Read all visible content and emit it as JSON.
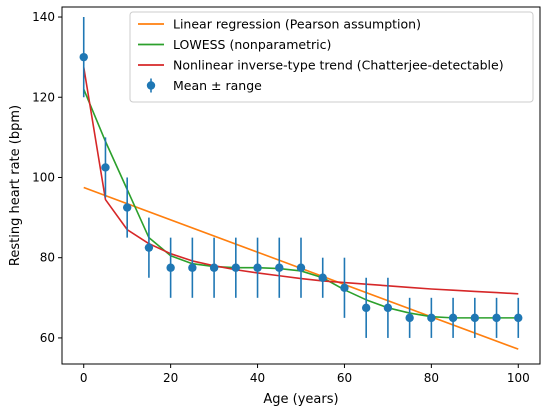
{
  "chart_data": {
    "type": "line",
    "title": "",
    "xlabel": "Age (years)",
    "ylabel": "Resting heart rate (bpm)",
    "xlim": [
      -5,
      105
    ],
    "ylim": [
      53.5,
      142.5
    ],
    "xticks": [
      0,
      20,
      40,
      60,
      80,
      100
    ],
    "yticks": [
      60,
      80,
      100,
      120,
      140
    ],
    "grid": false,
    "legend_position": "top-right",
    "points": {
      "name": "Mean ± range",
      "color": "#1f77b4",
      "x": [
        0,
        5,
        10,
        15,
        20,
        25,
        30,
        35,
        40,
        45,
        50,
        55,
        60,
        65,
        70,
        75,
        80,
        85,
        90,
        95,
        100
      ],
      "y": [
        130,
        102.5,
        92.5,
        82.5,
        77.5,
        77.5,
        77.5,
        77.5,
        77.5,
        77.5,
        77.5,
        75,
        72.5,
        67.5,
        67.5,
        65,
        65,
        65,
        65,
        65,
        65
      ],
      "err": [
        10,
        7.5,
        7.5,
        7.5,
        7.5,
        7.5,
        7.5,
        7.5,
        7.5,
        7.5,
        7.5,
        5,
        7.5,
        7.5,
        7.5,
        5,
        5,
        5,
        5,
        5,
        5
      ]
    },
    "series": [
      {
        "name": "Linear regression (Pearson assumption)",
        "color": "#ff7f0e",
        "x": [
          0,
          100
        ],
        "y": [
          97.5,
          57.2
        ]
      },
      {
        "name": "LOWESS (nonparametric)",
        "color": "#2ca02c",
        "x": [
          0,
          5,
          10,
          15,
          20,
          25,
          30,
          35,
          40,
          45,
          50,
          55,
          60,
          65,
          70,
          75,
          80,
          85,
          90,
          95,
          100
        ],
        "y": [
          122,
          109,
          97,
          85,
          80.5,
          78.5,
          77.8,
          77.5,
          77.5,
          77.3,
          76.7,
          75,
          72,
          69.5,
          67.5,
          66.2,
          65.3,
          65,
          65,
          65,
          65
        ]
      },
      {
        "name": "Nonlinear inverse-type trend (Chatterjee-detectable)",
        "color": "#d62728",
        "x": [
          0,
          5,
          10,
          15,
          20,
          25,
          30,
          35,
          40,
          45,
          50,
          55,
          60,
          65,
          70,
          75,
          80,
          85,
          90,
          95,
          100
        ],
        "y": [
          127.5,
          94.5,
          87,
          83.5,
          81,
          79.2,
          78,
          77,
          76.2,
          75.5,
          74.8,
          74.2,
          73.8,
          73.4,
          73,
          72.6,
          72.2,
          71.9,
          71.6,
          71.3,
          71
        ]
      }
    ]
  }
}
